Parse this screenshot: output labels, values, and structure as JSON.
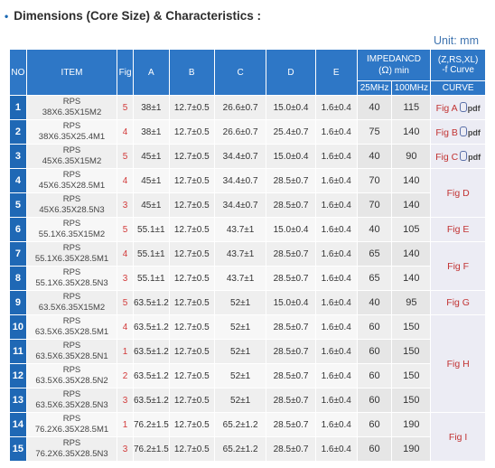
{
  "heading": {
    "bullet": "•",
    "title": "Dimensions (Core Size) & Characteristics :"
  },
  "unit": "Unit: mm",
  "columns": {
    "no": "NO",
    "item": "ITEM",
    "fig": "Fig",
    "a": "A",
    "b": "B",
    "c": "C",
    "d": "D",
    "e": "E",
    "impedance_line1": "IMPEDANCD",
    "impedance_omega": "Ω",
    "impedance_min": "min",
    "curve_line1": "(Z,RS,XL)",
    "curve_line2": "-f Curve",
    "mhz25": "25MHz",
    "mhz100": "100MHz",
    "curve_sub": "CURVE"
  },
  "pdf_label": "pdf",
  "rows": [
    {
      "no": "1",
      "item_line1": "RPS",
      "item_line2": "38X6.35X15M2",
      "fig": "5",
      "a": "38±1",
      "b": "12.7±0.5",
      "c": "26.6±0.7",
      "d": "15.0±0.4",
      "e": "1.6±0.4",
      "z25": "40",
      "z100": "115"
    },
    {
      "no": "2",
      "item_line1": "RPS",
      "item_line2": "38X6.35X25.4M1",
      "fig": "4",
      "a": "38±1",
      "b": "12.7±0.5",
      "c": "26.6±0.7",
      "d": "25.4±0.7",
      "e": "1.6±0.4",
      "z25": "75",
      "z100": "140"
    },
    {
      "no": "3",
      "item_line1": "RPS",
      "item_line2": "45X6.35X15M2",
      "fig": "5",
      "a": "45±1",
      "b": "12.7±0.5",
      "c": "34.4±0.7",
      "d": "15.0±0.4",
      "e": "1.6±0.4",
      "z25": "40",
      "z100": "90"
    },
    {
      "no": "4",
      "item_line1": "RPS",
      "item_line2": "45X6.35X28.5M1",
      "fig": "4",
      "a": "45±1",
      "b": "12.7±0.5",
      "c": "34.4±0.7",
      "d": "28.5±0.7",
      "e": "1.6±0.4",
      "z25": "70",
      "z100": "140"
    },
    {
      "no": "5",
      "item_line1": "RPS",
      "item_line2": "45X6.35X28.5N3",
      "fig": "3",
      "a": "45±1",
      "b": "12.7±0.5",
      "c": "34.4±0.7",
      "d": "28.5±0.7",
      "e": "1.6±0.4",
      "z25": "70",
      "z100": "140"
    },
    {
      "no": "6",
      "item_line1": "RPS",
      "item_line2": "55.1X6.35X15M2",
      "fig": "5",
      "a": "55.1±1",
      "b": "12.7±0.5",
      "c": "43.7±1",
      "d": "15.0±0.4",
      "e": "1.6±0.4",
      "z25": "40",
      "z100": "105"
    },
    {
      "no": "7",
      "item_line1": "RPS",
      "item_line2": "55.1X6.35X28.5M1",
      "fig": "4",
      "a": "55.1±1",
      "b": "12.7±0.5",
      "c": "43.7±1",
      "d": "28.5±0.7",
      "e": "1.6±0.4",
      "z25": "65",
      "z100": "140"
    },
    {
      "no": "8",
      "item_line1": "RPS",
      "item_line2": "55.1X6.35X28.5N3",
      "fig": "3",
      "a": "55.1±1",
      "b": "12.7±0.5",
      "c": "43.7±1",
      "d": "28.5±0.7",
      "e": "1.6±0.4",
      "z25": "65",
      "z100": "140"
    },
    {
      "no": "9",
      "item_line1": "RPS",
      "item_line2": "63.5X6.35X15M2",
      "fig": "5",
      "a": "63.5±1.2",
      "b": "12.7±0.5",
      "c": "52±1",
      "d": "15.0±0.4",
      "e": "1.6±0.4",
      "z25": "40",
      "z100": "95"
    },
    {
      "no": "10",
      "item_line1": "RPS",
      "item_line2": "63.5X6.35X28.5M1",
      "fig": "4",
      "a": "63.5±1.2",
      "b": "12.7±0.5",
      "c": "52±1",
      "d": "28.5±0.7",
      "e": "1.6±0.4",
      "z25": "60",
      "z100": "150"
    },
    {
      "no": "11",
      "item_line1": "RPS",
      "item_line2": "63.5X6.35X28.5N1",
      "fig": "1",
      "a": "63.5±1.2",
      "b": "12.7±0.5",
      "c": "52±1",
      "d": "28.5±0.7",
      "e": "1.6±0.4",
      "z25": "60",
      "z100": "150"
    },
    {
      "no": "12",
      "item_line1": "RPS",
      "item_line2": "63.5X6.35X28.5N2",
      "fig": "2",
      "a": "63.5±1.2",
      "b": "12.7±0.5",
      "c": "52±1",
      "d": "28.5±0.7",
      "e": "1.6±0.4",
      "z25": "60",
      "z100": "150"
    },
    {
      "no": "13",
      "item_line1": "RPS",
      "item_line2": "63.5X6.35X28.5N3",
      "fig": "3",
      "a": "63.5±1.2",
      "b": "12.7±0.5",
      "c": "52±1",
      "d": "28.5±0.7",
      "e": "1.6±0.4",
      "z25": "60",
      "z100": "150"
    },
    {
      "no": "14",
      "item_line1": "RPS",
      "item_line2": "76.2X6.35X28.5M1",
      "fig": "1",
      "a": "76.2±1.5",
      "b": "12.7±0.5",
      "c": "65.2±1.2",
      "d": "28.5±0.7",
      "e": "1.6±0.4",
      "z25": "60",
      "z100": "190"
    },
    {
      "no": "15",
      "item_line1": "RPS",
      "item_line2": "76.2X6.35X28.5N3",
      "fig": "3",
      "a": "76.2±1.5",
      "b": "12.7±0.5",
      "c": "65.2±1.2",
      "d": "28.5±0.7",
      "e": "1.6±0.4",
      "z25": "60",
      "z100": "190"
    }
  ],
  "curves": [
    {
      "label": "Fig A",
      "pdf": true
    },
    {
      "label": "Fig B",
      "pdf": true
    },
    {
      "label": "Fig C",
      "pdf": true
    },
    {
      "label": "Fig D",
      "pdf": false
    },
    {
      "label": "Fig E",
      "pdf": false
    },
    {
      "label": "Fig F",
      "pdf": false
    },
    {
      "label": "Fig G",
      "pdf": false
    },
    {
      "label": "Fig H",
      "pdf": false
    },
    {
      "label": "Fig I",
      "pdf": false
    }
  ],
  "colors": {
    "header_blue": "#2e77c6",
    "no_blue": "#1f68b5",
    "fig_red": "#d23a3a",
    "unit_blue": "#3f74b0"
  }
}
